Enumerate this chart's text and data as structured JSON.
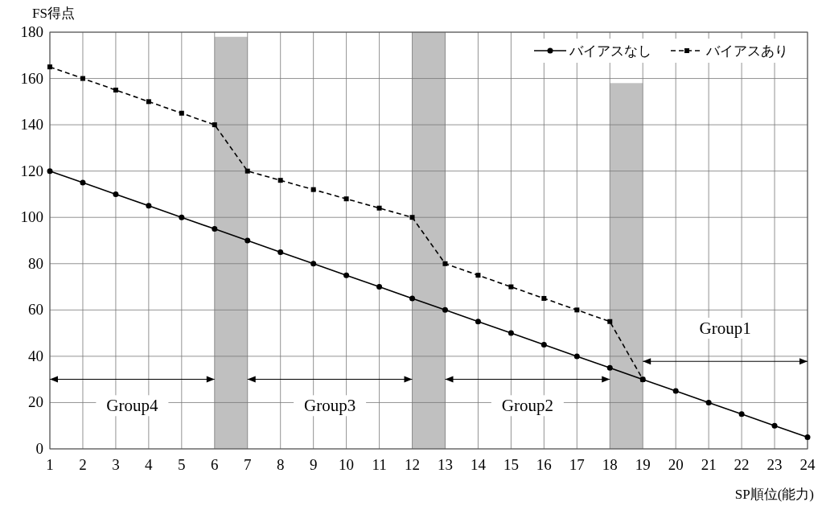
{
  "chart_data": {
    "type": "line",
    "xlabel": "SP順位(能力)",
    "ylabel": "FS得点",
    "x": [
      1,
      2,
      3,
      4,
      5,
      6,
      7,
      8,
      9,
      10,
      11,
      12,
      13,
      14,
      15,
      16,
      17,
      18,
      19,
      20,
      21,
      22,
      23,
      24
    ],
    "xlim": [
      1,
      24
    ],
    "xticks": [
      1,
      2,
      3,
      4,
      5,
      6,
      7,
      8,
      9,
      10,
      11,
      12,
      13,
      14,
      15,
      16,
      17,
      18,
      19,
      20,
      21,
      22,
      23,
      24
    ],
    "ylim": [
      0,
      180
    ],
    "yticks": [
      0,
      20,
      40,
      60,
      80,
      100,
      120,
      140,
      160,
      180
    ],
    "grid": true,
    "legend": "top right",
    "series": [
      {
        "type": "bar",
        "color": "#c0c0c0",
        "x": [
          6.5,
          12.5,
          18.5
        ],
        "values": [
          178,
          180,
          158
        ]
      },
      {
        "name": "バイアスなし",
        "color": "#000000",
        "marker": "circle",
        "line_style": "solid",
        "values": [
          120,
          115,
          110,
          105,
          100,
          95,
          90,
          85,
          80,
          75,
          70,
          65,
          60,
          55,
          50,
          45,
          40,
          35,
          30,
          25,
          20,
          15,
          10,
          5
        ]
      },
      {
        "name": "バイアスあり",
        "color": "#000000",
        "marker": "square",
        "line_style": "dashed",
        "values": [
          165,
          160,
          155,
          150,
          145,
          140,
          120,
          116,
          112,
          108,
          104,
          100,
          80,
          75,
          70,
          65,
          60,
          55,
          30,
          null,
          null,
          null,
          null,
          null
        ]
      }
    ],
    "annotations": [
      "Group4",
      "Group3",
      "Group2",
      "Group1"
    ]
  }
}
